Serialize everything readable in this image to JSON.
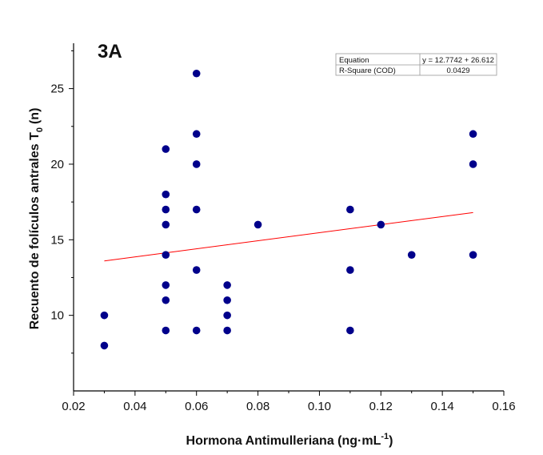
{
  "chart_data": {
    "type": "scatter",
    "panel_label": "3A",
    "xlabel": "Hormona Antimulleriana (ng·mL",
    "xlabel_sup": "-1",
    "xlabel_close": ")",
    "ylabel": "Recuento de folículos antrales  T",
    "ylabel_sub": "0",
    "ylabel_close": "(n)",
    "xlim": [
      0.02,
      0.16
    ],
    "ylim": [
      5,
      28
    ],
    "xticks": [
      0.02,
      0.04,
      0.06,
      0.08,
      0.1,
      0.12,
      0.14,
      0.16
    ],
    "xtick_labels": [
      "0.02",
      "0.04",
      "0.06",
      "0.08",
      "0.10",
      "0.12",
      "0.14",
      "0.16"
    ],
    "yticks": [
      10,
      15,
      20,
      25
    ],
    "ytick_labels": [
      "10",
      "15",
      "20",
      "25"
    ],
    "points": [
      {
        "x": 0.03,
        "y": 10
      },
      {
        "x": 0.03,
        "y": 8
      },
      {
        "x": 0.05,
        "y": 21
      },
      {
        "x": 0.05,
        "y": 18
      },
      {
        "x": 0.05,
        "y": 17
      },
      {
        "x": 0.05,
        "y": 16
      },
      {
        "x": 0.05,
        "y": 14
      },
      {
        "x": 0.05,
        "y": 12
      },
      {
        "x": 0.05,
        "y": 11
      },
      {
        "x": 0.05,
        "y": 9
      },
      {
        "x": 0.06,
        "y": 26
      },
      {
        "x": 0.06,
        "y": 22
      },
      {
        "x": 0.06,
        "y": 20
      },
      {
        "x": 0.06,
        "y": 17
      },
      {
        "x": 0.06,
        "y": 13
      },
      {
        "x": 0.06,
        "y": 9
      },
      {
        "x": 0.07,
        "y": 12
      },
      {
        "x": 0.07,
        "y": 11
      },
      {
        "x": 0.07,
        "y": 10
      },
      {
        "x": 0.07,
        "y": 9
      },
      {
        "x": 0.08,
        "y": 16
      },
      {
        "x": 0.11,
        "y": 17
      },
      {
        "x": 0.11,
        "y": 13
      },
      {
        "x": 0.11,
        "y": 9
      },
      {
        "x": 0.12,
        "y": 16
      },
      {
        "x": 0.13,
        "y": 14
      },
      {
        "x": 0.15,
        "y": 22
      },
      {
        "x": 0.15,
        "y": 20
      },
      {
        "x": 0.15,
        "y": 14
      }
    ],
    "point_color": "#00008b",
    "fit_line": {
      "x_start": 0.03,
      "y_start": 13.6,
      "x_end": 0.15,
      "y_end": 16.8,
      "color": "#ff0000"
    },
    "equation_table": {
      "rows": [
        {
          "label": "Equation",
          "value": "y = 12.7742 + 26.612"
        },
        {
          "label": "R-Square (COD)",
          "value": "0.0429"
        }
      ]
    }
  }
}
